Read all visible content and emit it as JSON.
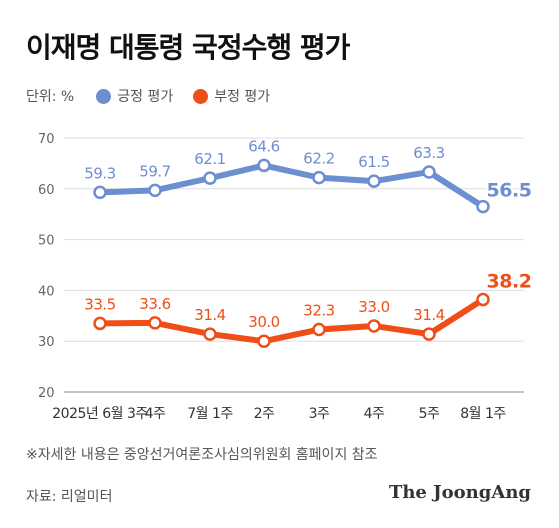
{
  "title": "이재명 대통령 국정수행 평가",
  "unit_label": "단위: %",
  "legend": [
    {
      "label": "긍정 평가",
      "color": "#6b8fd1"
    },
    {
      "label": "부정 평가",
      "color": "#ef4e18"
    }
  ],
  "note": "※자세한 내용은 중앙선거여론조사심의위원회 홈페이지 참조",
  "source": "자료: 리얼미터",
  "brand": "The JoongAng",
  "chart_data": {
    "type": "line",
    "title": "이재명 대통령 국정수행 평가",
    "x": [
      "2025년 6월 3주",
      "4주",
      "7월 1주",
      "2주",
      "3주",
      "4주",
      "5주",
      "8월 1주"
    ],
    "yticks": [
      20,
      30,
      40,
      50,
      60,
      70
    ],
    "ylim": [
      20,
      70
    ],
    "grid": true,
    "legend_position": "top-left",
    "series": [
      {
        "name": "긍정 평가",
        "color": "#6b8fd1",
        "values": [
          59.3,
          59.7,
          62.1,
          64.6,
          62.2,
          61.5,
          63.3,
          56.5
        ]
      },
      {
        "name": "부정 평가",
        "color": "#ef4e18",
        "values": [
          33.5,
          33.6,
          31.4,
          30.0,
          32.3,
          33.0,
          31.4,
          38.2
        ]
      }
    ]
  }
}
